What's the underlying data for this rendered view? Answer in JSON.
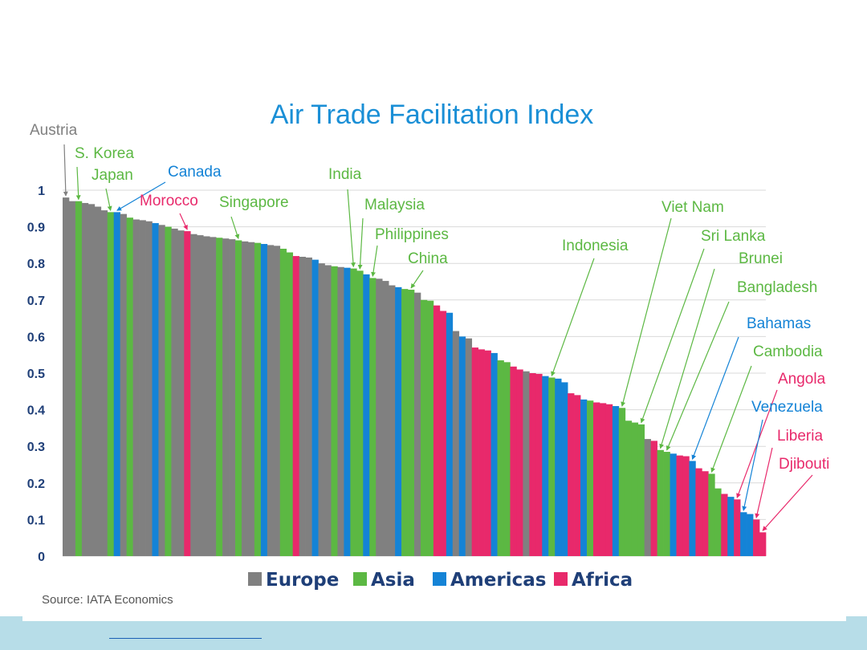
{
  "chart_data": {
    "type": "bar",
    "title": "Air Trade Facilitation Index",
    "ylim": [
      0,
      1
    ],
    "y_ticks": [
      "0",
      "0.1",
      "0.2",
      "0.3",
      "0.4",
      "0.5",
      "0.6",
      "0.7",
      "0.8",
      "0.9",
      "1"
    ],
    "grid": true,
    "legend_position": "bottom",
    "colors": {
      "Europe": "#808080",
      "Asia": "#5cb843",
      "Americas": "#1483d6",
      "Africa": "#e8296b"
    },
    "legend": [
      {
        "name": "Europe",
        "color": "#808080"
      },
      {
        "name": "Asia",
        "color": "#5cb843"
      },
      {
        "name": "Americas",
        "color": "#1483d6"
      },
      {
        "name": "Africa",
        "color": "#e8296b"
      }
    ],
    "bars": [
      {
        "region": "Europe",
        "value": 0.98
      },
      {
        "region": "Europe",
        "value": 0.97
      },
      {
        "region": "Asia",
        "value": 0.97
      },
      {
        "region": "Europe",
        "value": 0.965
      },
      {
        "region": "Europe",
        "value": 0.962
      },
      {
        "region": "Europe",
        "value": 0.955
      },
      {
        "region": "Europe",
        "value": 0.945
      },
      {
        "region": "Asia",
        "value": 0.94
      },
      {
        "region": "Americas",
        "value": 0.94
      },
      {
        "region": "Europe",
        "value": 0.935
      },
      {
        "region": "Asia",
        "value": 0.925
      },
      {
        "region": "Europe",
        "value": 0.92
      },
      {
        "region": "Europe",
        "value": 0.918
      },
      {
        "region": "Europe",
        "value": 0.915
      },
      {
        "region": "Americas",
        "value": 0.91
      },
      {
        "region": "Europe",
        "value": 0.905
      },
      {
        "region": "Asia",
        "value": 0.9
      },
      {
        "region": "Europe",
        "value": 0.895
      },
      {
        "region": "Europe",
        "value": 0.89
      },
      {
        "region": "Africa",
        "value": 0.888
      },
      {
        "region": "Europe",
        "value": 0.88
      },
      {
        "region": "Europe",
        "value": 0.877
      },
      {
        "region": "Europe",
        "value": 0.874
      },
      {
        "region": "Europe",
        "value": 0.872
      },
      {
        "region": "Asia",
        "value": 0.87
      },
      {
        "region": "Europe",
        "value": 0.868
      },
      {
        "region": "Europe",
        "value": 0.866
      },
      {
        "region": "Asia",
        "value": 0.863
      },
      {
        "region": "Europe",
        "value": 0.86
      },
      {
        "region": "Europe",
        "value": 0.858
      },
      {
        "region": "Asia",
        "value": 0.856
      },
      {
        "region": "Americas",
        "value": 0.853
      },
      {
        "region": "Europe",
        "value": 0.85
      },
      {
        "region": "Europe",
        "value": 0.848
      },
      {
        "region": "Asia",
        "value": 0.84
      },
      {
        "region": "Asia",
        "value": 0.83
      },
      {
        "region": "Africa",
        "value": 0.82
      },
      {
        "region": "Europe",
        "value": 0.818
      },
      {
        "region": "Europe",
        "value": 0.816
      },
      {
        "region": "Americas",
        "value": 0.81
      },
      {
        "region": "Europe",
        "value": 0.8
      },
      {
        "region": "Europe",
        "value": 0.795
      },
      {
        "region": "Asia",
        "value": 0.792
      },
      {
        "region": "Europe",
        "value": 0.79
      },
      {
        "region": "Americas",
        "value": 0.788
      },
      {
        "region": "Asia",
        "value": 0.786
      },
      {
        "region": "Asia",
        "value": 0.78
      },
      {
        "region": "Americas",
        "value": 0.77
      },
      {
        "region": "Asia",
        "value": 0.76
      },
      {
        "region": "Europe",
        "value": 0.758
      },
      {
        "region": "Europe",
        "value": 0.752
      },
      {
        "region": "Europe",
        "value": 0.74
      },
      {
        "region": "Americas",
        "value": 0.735
      },
      {
        "region": "Asia",
        "value": 0.73
      },
      {
        "region": "Asia",
        "value": 0.728
      },
      {
        "region": "Europe",
        "value": 0.72
      },
      {
        "region": "Asia",
        "value": 0.7
      },
      {
        "region": "Asia",
        "value": 0.698
      },
      {
        "region": "Africa",
        "value": 0.685
      },
      {
        "region": "Africa",
        "value": 0.67
      },
      {
        "region": "Americas",
        "value": 0.665
      },
      {
        "region": "Europe",
        "value": 0.615
      },
      {
        "region": "Americas",
        "value": 0.6
      },
      {
        "region": "Europe",
        "value": 0.595
      },
      {
        "region": "Africa",
        "value": 0.57
      },
      {
        "region": "Africa",
        "value": 0.565
      },
      {
        "region": "Africa",
        "value": 0.562
      },
      {
        "region": "Americas",
        "value": 0.555
      },
      {
        "region": "Asia",
        "value": 0.535
      },
      {
        "region": "Asia",
        "value": 0.53
      },
      {
        "region": "Africa",
        "value": 0.518
      },
      {
        "region": "Africa",
        "value": 0.51
      },
      {
        "region": "Europe",
        "value": 0.505
      },
      {
        "region": "Africa",
        "value": 0.5
      },
      {
        "region": "Africa",
        "value": 0.498
      },
      {
        "region": "Americas",
        "value": 0.492
      },
      {
        "region": "Asia",
        "value": 0.488
      },
      {
        "region": "Americas",
        "value": 0.485
      },
      {
        "region": "Americas",
        "value": 0.475
      },
      {
        "region": "Africa",
        "value": 0.445
      },
      {
        "region": "Africa",
        "value": 0.44
      },
      {
        "region": "Americas",
        "value": 0.428
      },
      {
        "region": "Asia",
        "value": 0.425
      },
      {
        "region": "Africa",
        "value": 0.42
      },
      {
        "region": "Africa",
        "value": 0.418
      },
      {
        "region": "Africa",
        "value": 0.415
      },
      {
        "region": "Americas",
        "value": 0.41
      },
      {
        "region": "Asia",
        "value": 0.405
      },
      {
        "region": "Asia",
        "value": 0.37
      },
      {
        "region": "Asia",
        "value": 0.365
      },
      {
        "region": "Asia",
        "value": 0.36
      },
      {
        "region": "Europe",
        "value": 0.32
      },
      {
        "region": "Africa",
        "value": 0.315
      },
      {
        "region": "Asia",
        "value": 0.29
      },
      {
        "region": "Asia",
        "value": 0.285
      },
      {
        "region": "Americas",
        "value": 0.28
      },
      {
        "region": "Africa",
        "value": 0.275
      },
      {
        "region": "Africa",
        "value": 0.273
      },
      {
        "region": "Americas",
        "value": 0.26
      },
      {
        "region": "Africa",
        "value": 0.24
      },
      {
        "region": "Africa",
        "value": 0.232
      },
      {
        "region": "Asia",
        "value": 0.225
      },
      {
        "region": "Asia",
        "value": 0.185
      },
      {
        "region": "Africa",
        "value": 0.17
      },
      {
        "region": "Americas",
        "value": 0.162
      },
      {
        "region": "Africa",
        "value": 0.155
      },
      {
        "region": "Americas",
        "value": 0.12
      },
      {
        "region": "Americas",
        "value": 0.115
      },
      {
        "region": "Africa",
        "value": 0.1
      },
      {
        "region": "Africa",
        "value": 0.065
      }
    ],
    "annotations": [
      {
        "label": "Austria",
        "region": "Europe",
        "color": "#808080",
        "bar": 0
      },
      {
        "label": "S. Korea",
        "region": "Asia",
        "color": "#5cb843",
        "bar": 2
      },
      {
        "label": "Japan",
        "region": "Asia",
        "color": "#5cb843",
        "bar": 7
      },
      {
        "label": "Canada",
        "region": "Americas",
        "color": "#1483d6",
        "bar": 8
      },
      {
        "label": "Morocco",
        "region": "Africa",
        "color": "#e8296b",
        "bar": 19
      },
      {
        "label": "Singapore",
        "region": "Asia",
        "color": "#5cb843",
        "bar": 27
      },
      {
        "label": "India",
        "region": "Asia",
        "color": "#5cb843",
        "bar": 45
      },
      {
        "label": "Malaysia",
        "region": "Asia",
        "color": "#5cb843",
        "bar": 46
      },
      {
        "label": "Philippines",
        "region": "Asia",
        "color": "#5cb843",
        "bar": 48
      },
      {
        "label": "China",
        "region": "Asia",
        "color": "#5cb843",
        "bar": 54
      },
      {
        "label": "Indonesia",
        "region": "Asia",
        "color": "#5cb843",
        "bar": 76
      },
      {
        "label": "Viet Nam",
        "region": "Asia",
        "color": "#5cb843",
        "bar": 87
      },
      {
        "label": "Sri Lanka",
        "region": "Asia",
        "color": "#5cb843",
        "bar": 90
      },
      {
        "label": "Brunei",
        "region": "Asia",
        "color": "#5cb843",
        "bar": 93
      },
      {
        "label": "Bangladesh",
        "region": "Asia",
        "color": "#5cb843",
        "bar": 94
      },
      {
        "label": "Bahamas",
        "region": "Americas",
        "color": "#1483d6",
        "bar": 98
      },
      {
        "label": "Cambodia",
        "region": "Asia",
        "color": "#5cb843",
        "bar": 101
      },
      {
        "label": "Angola",
        "region": "Africa",
        "color": "#e8296b",
        "bar": 105
      },
      {
        "label": "Venezuela",
        "region": "Americas",
        "color": "#1483d6",
        "bar": 106
      },
      {
        "label": "Liberia",
        "region": "Africa",
        "color": "#e8296b",
        "bar": 108
      },
      {
        "label": "Djibouti",
        "region": "Africa",
        "color": "#e8296b",
        "bar": 109
      }
    ]
  },
  "source": "Source: IATA Economics"
}
